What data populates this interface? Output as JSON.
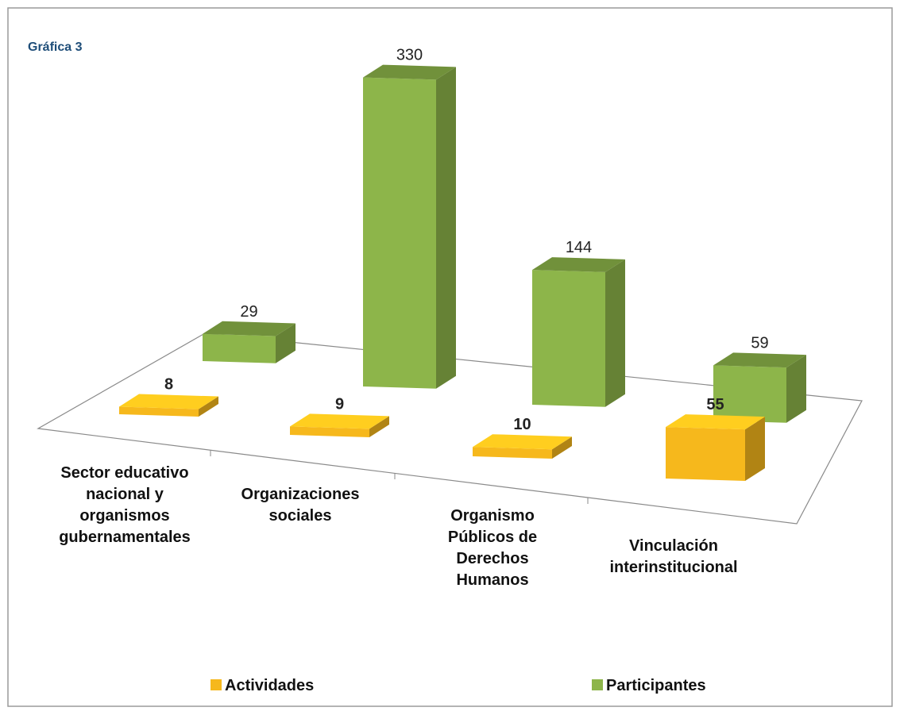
{
  "chart_data": {
    "type": "bar3d",
    "title": "Gráfica 3",
    "categories": [
      "Sector educativo nacional y organismos gubernamentales",
      "Organizaciones sociales",
      "Organismo Públicos de Derechos Humanos",
      "Vinculación interinstitucional"
    ],
    "series": [
      {
        "name": "Actividades",
        "color": "#f6b81c",
        "values": [
          8,
          9,
          10,
          55
        ]
      },
      {
        "name": "Participantes",
        "color": "#8db54a",
        "values": [
          29,
          330,
          144,
          59
        ]
      }
    ],
    "legend": "bottom"
  }
}
